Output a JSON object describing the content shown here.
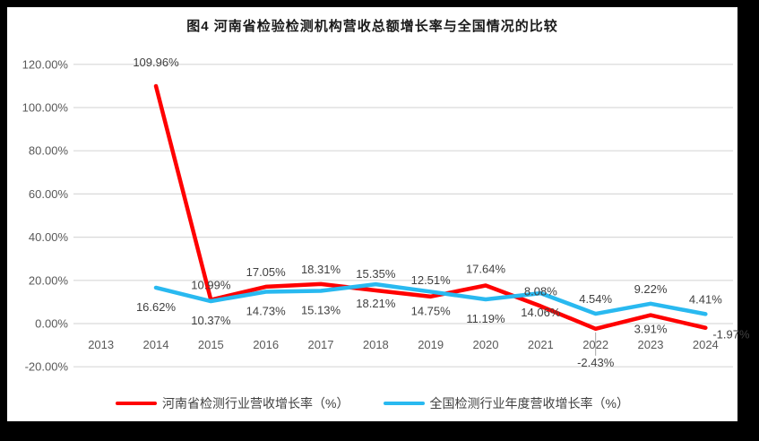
{
  "chart_data": {
    "type": "line",
    "title": "图4  河南省检验检测机构营收总额增长率与全国情况的比较",
    "categories": [
      "2013",
      "2014",
      "2015",
      "2016",
      "2017",
      "2018",
      "2019",
      "2020",
      "2021",
      "2022",
      "2023",
      "2024"
    ],
    "series": [
      {
        "name": "河南省检测行业营收增长率（%）",
        "color": "#ff0000",
        "values": [
          null,
          109.96,
          10.99,
          17.05,
          18.31,
          15.35,
          12.51,
          17.64,
          8.08,
          -2.43,
          3.91,
          -1.97
        ]
      },
      {
        "name": "全国检测行业年度营收增长率（%）",
        "color": "#29b9f0",
        "values": [
          null,
          16.62,
          10.37,
          14.73,
          15.13,
          18.21,
          14.75,
          11.19,
          14.06,
          4.54,
          9.22,
          4.41
        ]
      }
    ],
    "xlabel": "",
    "ylabel": "",
    "ylim": [
      -20,
      120
    ],
    "ytick_step": 20,
    "ytick_labels": [
      "-20.00%",
      "0.00%",
      "20.00%",
      "40.00%",
      "60.00%",
      "80.00%",
      "100.00%",
      "120.00%"
    ],
    "grid": "horizontal",
    "legend_position": "bottom",
    "colors": {
      "gridline": "#d9d9d9",
      "tick_text": "#595959",
      "data_label_text": "#404040",
      "leader_line": "#a6a6a6",
      "frame": "#000000",
      "background": "#ffffff"
    }
  }
}
